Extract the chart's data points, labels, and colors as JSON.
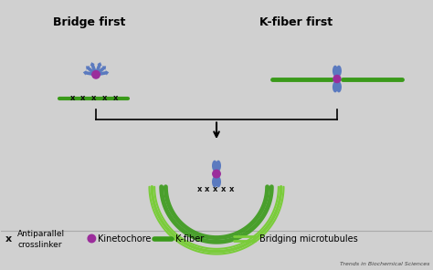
{
  "bg_color": "#d0d0d0",
  "title_left": "Bridge first",
  "title_right": "K-fiber first",
  "watermark": "Trends in Biochemical Sciences",
  "chr_color": "#5b7abf",
  "chr_color_dark": "#4a6aaf",
  "kineto_color": "#9b2d9b",
  "kfiber_color": "#3a9a1a",
  "bridge_color": "#7acc3a",
  "cross_color": "#111111",
  "arrow_color": "#333333",
  "legend_x_label": "Antiparallel\ncrosslinker",
  "legend_k_label": "Kinetochore",
  "legend_kf_label": "K-fiber",
  "legend_br_label": "Bridging microtubules"
}
